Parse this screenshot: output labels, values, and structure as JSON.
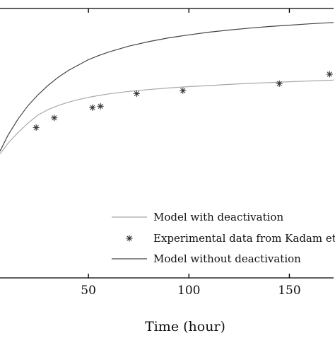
{
  "chart_data": {
    "type": "line",
    "title": "",
    "xlabel": "Time (hour)",
    "ylabel": "",
    "xlim": [
      6,
      172
    ],
    "ylim": [
      0,
      1
    ],
    "x_ticks": [
      50,
      100,
      150
    ],
    "grid": false,
    "legend_position": "bottom-right",
    "series": [
      {
        "name": "Model with deactivation",
        "kind": "line",
        "color": "#a8a8a8",
        "x": [
          6,
          10,
          15,
          20,
          25,
          30,
          35,
          40,
          45,
          50,
          55,
          60,
          70,
          80,
          90,
          100,
          110,
          120,
          130,
          140,
          150,
          160,
          172
        ],
        "y": [
          0.46,
          0.5,
          0.54,
          0.575,
          0.605,
          0.625,
          0.64,
          0.652,
          0.662,
          0.67,
          0.677,
          0.683,
          0.692,
          0.699,
          0.705,
          0.71,
          0.714,
          0.718,
          0.722,
          0.725,
          0.728,
          0.731,
          0.734
        ]
      },
      {
        "name": "Experimental data from Kadam et",
        "kind": "scatter",
        "color": "#333333",
        "x": [
          24,
          33,
          52,
          56,
          74,
          97,
          145,
          170
        ],
        "y": [
          0.558,
          0.594,
          0.632,
          0.637,
          0.684,
          0.695,
          0.721,
          0.756
        ]
      },
      {
        "name": "Model without deactivation",
        "kind": "line",
        "color": "#444444",
        "x": [
          6,
          10,
          15,
          20,
          25,
          30,
          35,
          40,
          45,
          50,
          55,
          60,
          70,
          80,
          90,
          100,
          110,
          120,
          130,
          140,
          150,
          160,
          172
        ],
        "y": [
          0.47,
          0.53,
          0.59,
          0.64,
          0.68,
          0.715,
          0.745,
          0.77,
          0.79,
          0.81,
          0.825,
          0.838,
          0.86,
          0.877,
          0.891,
          0.902,
          0.912,
          0.92,
          0.927,
          0.933,
          0.938,
          0.943,
          0.948
        ]
      }
    ]
  }
}
